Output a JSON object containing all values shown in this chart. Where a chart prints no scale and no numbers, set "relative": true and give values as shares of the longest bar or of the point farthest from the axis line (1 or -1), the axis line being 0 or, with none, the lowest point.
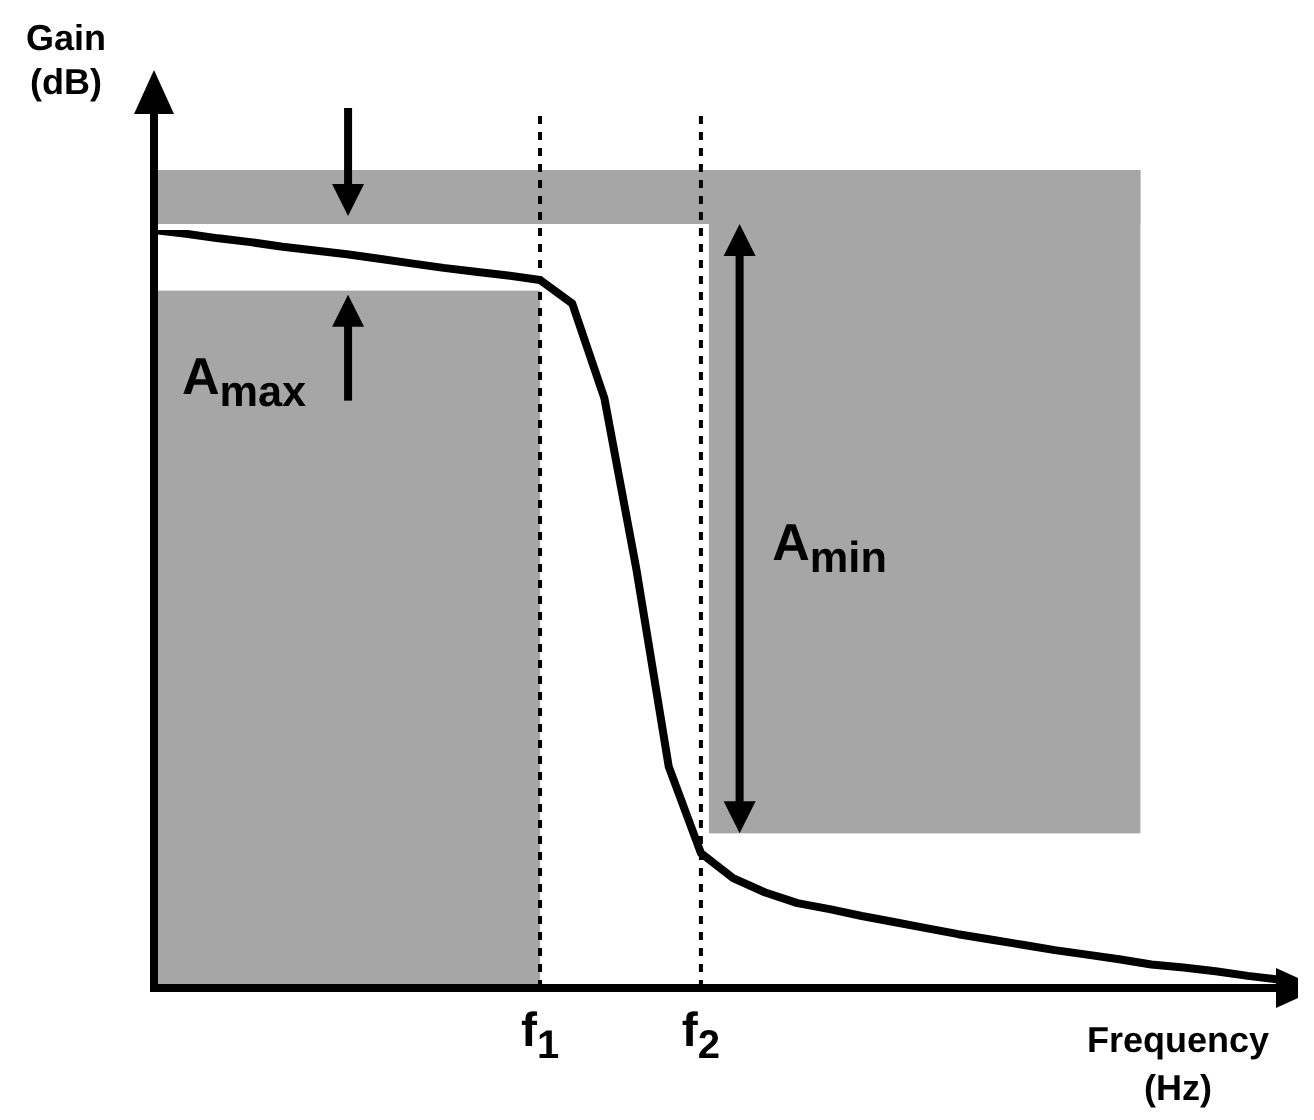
{
  "chart_data": {
    "type": "line",
    "relative": true,
    "categories": [
      null,
      null,
      null,
      null,
      null,
      null,
      null,
      null,
      null,
      null,
      null,
      null,
      "f$_{1}$",
      null,
      null,
      null,
      null,
      "f$_{2}$",
      null,
      null,
      null,
      null,
      null,
      null,
      null,
      null,
      null,
      null,
      null,
      null,
      null,
      null,
      null,
      null,
      null,
      null
    ],
    "tick_labels": "x",
    "xlabel": "Frequency (Hz)",
    "ylabel": "Gain (dB)",
    "grid": false,
    "legend": false,
    "marker": "none",
    "annotations": [
      "A$_{max}$",
      "A$_{min}$"
    ],
    "ref_lines": [
      {
        "axis": "x",
        "value": "f$_{1}$",
        "color": "#000000",
        "line_style": "dotted"
      },
      {
        "axis": "x",
        "value": "f$_{2}$",
        "color": "#000000",
        "line_style": "dotted"
      }
    ],
    "series": [
      {
        "type": "line",
        "color": "#000000",
        "line_style": "solid",
        "values": [
          1,
          0.995,
          0.989,
          0.984,
          0.978,
          0.973,
          0.968,
          0.962,
          0.956,
          0.95,
          0.945,
          0.94,
          0.934,
          0.903,
          0.778,
          0.551,
          0.292,
          0.178,
          0.145,
          0.126,
          0.112,
          0.104,
          0.095,
          0.087,
          0.079,
          0.071,
          0.064,
          0.057,
          0.05,
          0.044,
          0.038,
          0.031,
          0.027,
          0.022,
          0.016,
          0.011
        ]
      }
    ]
  }
}
